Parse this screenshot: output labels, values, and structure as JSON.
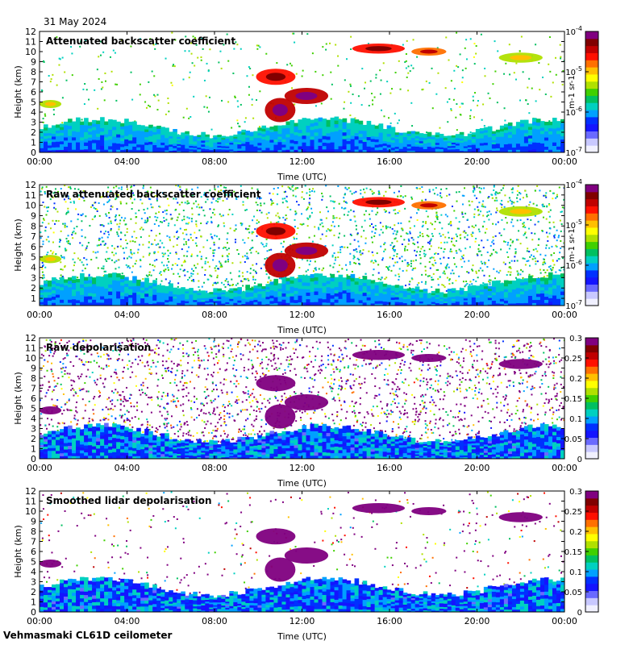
{
  "date": "31 May 2024",
  "footer": "Vehmasmaki CL61D ceilometer",
  "colors": {
    "background": "#ffffff",
    "text": "#000000",
    "colormap": [
      "#f0f0ff",
      "#c8c8ff",
      "#6a6aff",
      "#1414ff",
      "#0030ff",
      "#00a0ff",
      "#00d0c0",
      "#00c060",
      "#40d000",
      "#b0e000",
      "#ffff00",
      "#ffc000",
      "#ff7000",
      "#ff1000",
      "#c00000",
      "#800000",
      "#800080"
    ]
  },
  "chart_data": [
    {
      "type": "heatmap",
      "title": "Attenuated backscatter coefficient",
      "xlabel": "Time (UTC)",
      "ylabel": "Height (km)",
      "x_ticks": [
        "00:00",
        "04:00",
        "08:00",
        "12:00",
        "16:00",
        "20:00",
        "00:00"
      ],
      "y_ticks": [
        "0",
        "1",
        "2",
        "3",
        "4",
        "5",
        "6",
        "7",
        "8",
        "9",
        "10",
        "11",
        "12"
      ],
      "xlim": [
        0,
        24
      ],
      "ylim": [
        0,
        12
      ],
      "colorbar": {
        "scale": "log",
        "range": [
          1e-07,
          0.0001
        ],
        "ticks": [
          "10-7",
          "10-6",
          "10-5",
          "10-4"
        ],
        "unit": "m-1 sr-1"
      },
      "features": [
        {
          "name": "boundary layer",
          "x": [
            0,
            24
          ],
          "y": [
            0,
            1.8
          ],
          "level": 0.2
        },
        {
          "name": "aerosol layer",
          "x": [
            0,
            24
          ],
          "y": [
            1.8,
            3.5
          ],
          "level": 0.4
        },
        {
          "name": "cloud",
          "x": [
            10.5,
            12.5
          ],
          "y": [
            4.5,
            7.5
          ],
          "level": 0.9
        },
        {
          "name": "cloud",
          "x": [
            14.5,
            19
          ],
          "y": [
            9.5,
            11
          ],
          "level": 0.85
        },
        {
          "name": "cloud",
          "x": [
            21,
            23
          ],
          "y": [
            9,
            10
          ],
          "level": 0.6
        }
      ]
    },
    {
      "type": "heatmap",
      "title": "Raw attenuated backscatter coefficient",
      "xlabel": "Time (UTC)",
      "ylabel": "Height (km)",
      "x_ticks": [
        "00:00",
        "04:00",
        "08:00",
        "12:00",
        "16:00",
        "20:00",
        "00:00"
      ],
      "y_ticks": [
        "1",
        "2",
        "3",
        "4",
        "5",
        "6",
        "7",
        "8",
        "9",
        "10",
        "11",
        "12"
      ],
      "xlim": [
        0,
        24
      ],
      "ylim": [
        0.3,
        12
      ],
      "colorbar": {
        "scale": "log",
        "range": [
          1e-07,
          0.0001
        ],
        "ticks": [
          "10-7",
          "10-6",
          "10-5",
          "10-4"
        ],
        "unit": "m-1 sr-1"
      }
    },
    {
      "type": "heatmap",
      "title": "Raw depolarisation",
      "xlabel": "Time (UTC)",
      "ylabel": "Height (km)",
      "x_ticks": [
        "00:00",
        "04:00",
        "08:00",
        "12:00",
        "16:00",
        "20:00",
        "00:00"
      ],
      "y_ticks": [
        "0",
        "1",
        "2",
        "3",
        "4",
        "5",
        "6",
        "7",
        "8",
        "9",
        "10",
        "11",
        "12"
      ],
      "xlim": [
        0,
        24
      ],
      "ylim": [
        0,
        12
      ],
      "colorbar": {
        "scale": "linear",
        "range": [
          0,
          0.3
        ],
        "ticks": [
          "0",
          "0.05",
          "0.1",
          "0.15",
          "0.2",
          "0.25",
          "0.3"
        ]
      }
    },
    {
      "type": "heatmap",
      "title": "Smoothed lidar depolarisation",
      "xlabel": "Time (UTC)",
      "ylabel": "Height (km)",
      "x_ticks": [
        "00:00",
        "04:00",
        "08:00",
        "12:00",
        "16:00",
        "20:00",
        "00:00"
      ],
      "y_ticks": [
        "0",
        "1",
        "2",
        "3",
        "4",
        "5",
        "6",
        "7",
        "8",
        "9",
        "10",
        "11",
        "12"
      ],
      "xlim": [
        0,
        24
      ],
      "ylim": [
        0,
        12
      ],
      "colorbar": {
        "scale": "linear",
        "range": [
          0,
          0.3
        ],
        "ticks": [
          "0",
          "0.05",
          "0.1",
          "0.15",
          "0.2",
          "0.25",
          "0.3"
        ]
      }
    }
  ]
}
